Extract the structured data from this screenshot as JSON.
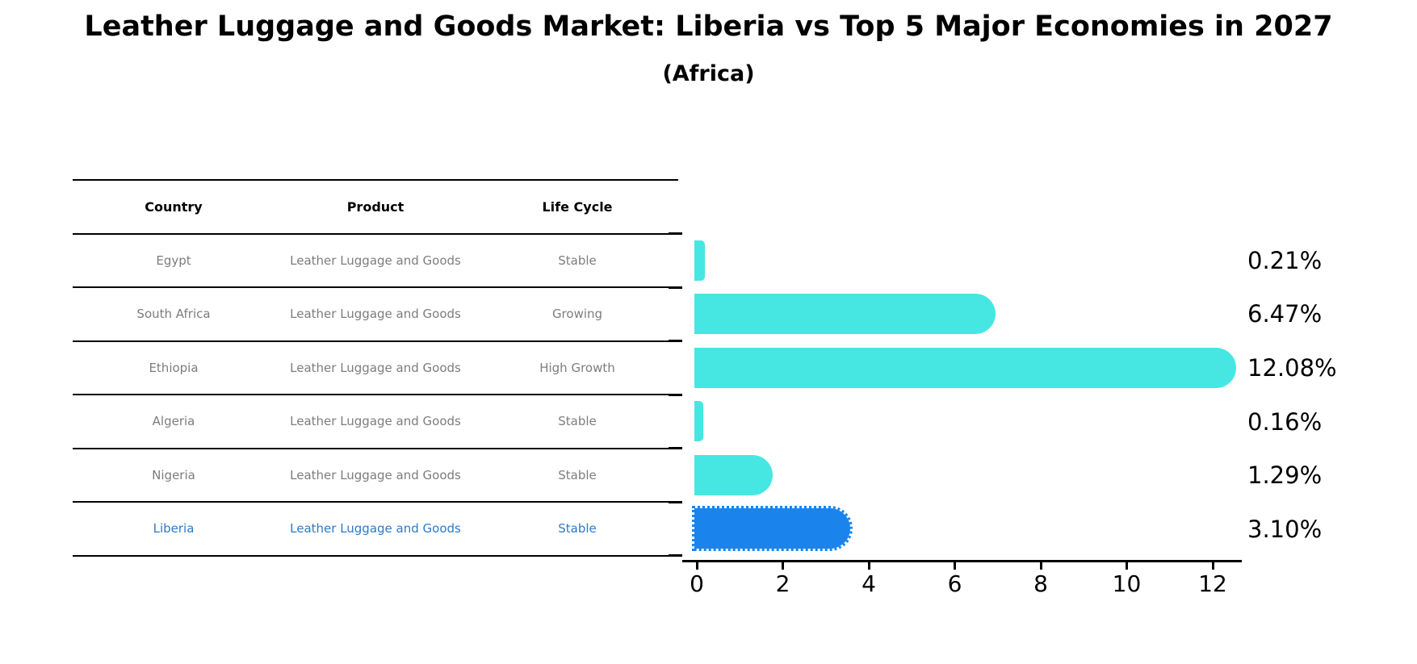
{
  "title": "Leather Luggage and Goods Market: Liberia vs Top 5 Major Economies in 2027",
  "subtitle": "(Africa)",
  "table": {
    "columns": [
      "Country",
      "Product",
      "Life Cycle"
    ],
    "rows": [
      {
        "country": "Egypt",
        "product": "Leather Luggage and Goods",
        "life_cycle": "Stable"
      },
      {
        "country": "South Africa",
        "product": "Leather Luggage and Goods",
        "life_cycle": "Growing"
      },
      {
        "country": "Ethiopia",
        "product": "Leather Luggage and Goods",
        "life_cycle": "High Growth"
      },
      {
        "country": "Algeria",
        "product": "Leather Luggage and Goods",
        "life_cycle": "Stable"
      },
      {
        "country": "Nigeria",
        "product": "Leather Luggage and Goods",
        "life_cycle": "Stable"
      },
      {
        "country": "Liberia",
        "product": "Leather Luggage and Goods",
        "life_cycle": "Stable"
      }
    ]
  },
  "chart_data": {
    "type": "bar",
    "orientation": "horizontal",
    "title": "Leather Luggage and Goods Market: Liberia vs Top 5 Major Economies in 2027 (Africa)",
    "categories": [
      "Egypt",
      "South Africa",
      "Ethiopia",
      "Algeria",
      "Nigeria",
      "Liberia"
    ],
    "values": [
      0.21,
      6.47,
      12.08,
      0.16,
      1.29,
      3.1
    ],
    "value_labels": [
      "0.21%",
      "6.47%",
      "12.08%",
      "0.16%",
      "1.29%",
      "3.10%"
    ],
    "xlabel": "",
    "ylabel": "",
    "xlim": [
      0,
      12.7
    ],
    "x_ticks": [
      0,
      2,
      4,
      6,
      8,
      10,
      12
    ],
    "grid": false,
    "legend": "none",
    "highlight_category": "Liberia"
  },
  "colors": {
    "bar": "#46e7e3",
    "highlight_bar": "#1a84ec",
    "highlight_text": "#2e79c7",
    "row_text": "#7d7d7d",
    "header_text": "#000000",
    "axis": "#000000"
  }
}
